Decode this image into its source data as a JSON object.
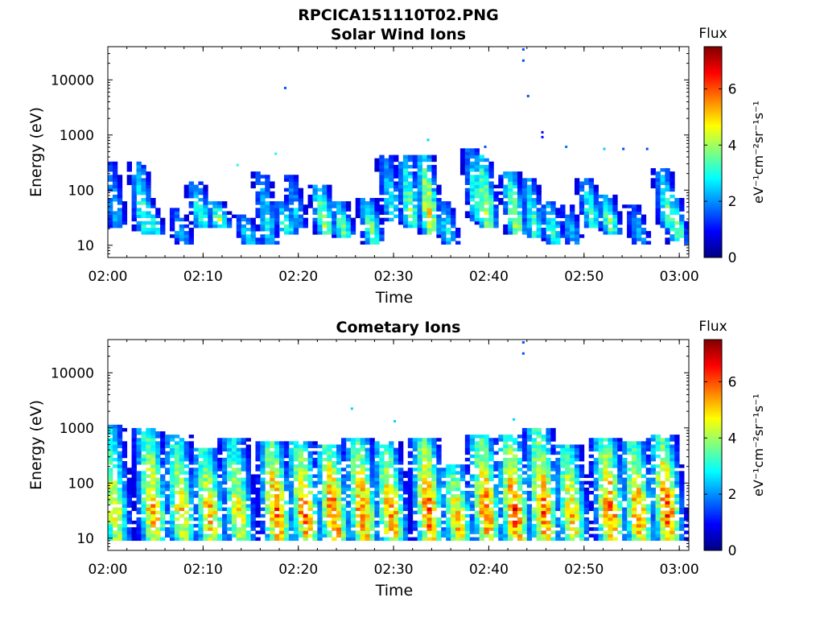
{
  "figure_title": "RPCICA151110T02.PNG",
  "chart_data": [
    {
      "type": "heatmap",
      "title": "Solar Wind Ions",
      "xlabel": "Time",
      "ylabel": "Energy (eV)",
      "yscale": "log",
      "xlim": [
        "02:00",
        "03:01"
      ],
      "ylim": [
        6,
        40000
      ],
      "xticks": [
        "02:00",
        "02:10",
        "02:20",
        "02:30",
        "02:40",
        "02:50",
        "03:00"
      ],
      "yticks": [
        "10",
        "100",
        "1000",
        "10000"
      ],
      "colorbar": {
        "label_top": "Flux",
        "unit": "eV⁻¹cm⁻²sr⁻¹s⁻¹",
        "range": [
          0,
          7.5
        ],
        "ticks": [
          "0",
          "2",
          "4",
          "6"
        ],
        "colormap": "jet"
      },
      "grid": false,
      "events": [
        {
          "t": "02:01",
          "emin": 20,
          "emax": 300,
          "fmax": 2.5
        },
        {
          "t": "02:04",
          "emin": 15,
          "emax": 300,
          "fmax": 3.5
        },
        {
          "t": "02:05",
          "emin": 15,
          "emax": 50,
          "fmax": 3.5
        },
        {
          "t": "02:08",
          "emin": 10,
          "emax": 45,
          "fmax": 2.5
        },
        {
          "t": "02:10",
          "emin": 20,
          "emax": 130,
          "fmax": 3.5
        },
        {
          "t": "02:12",
          "emin": 20,
          "emax": 60,
          "fmax": 4
        },
        {
          "t": "02:15",
          "emin": 10,
          "emax": 35,
          "fmax": 3
        },
        {
          "t": "02:17",
          "emin": 10,
          "emax": 200,
          "fmax": 3
        },
        {
          "t": "02:19",
          "emin": 15,
          "emax": 60,
          "fmax": 3.5
        },
        {
          "t": "02:20",
          "emin": 20,
          "emax": 180,
          "fmax": 2.5
        },
        {
          "t": "02:23",
          "emin": 15,
          "emax": 120,
          "fmax": 4.5
        },
        {
          "t": "02:25",
          "emin": 12,
          "emax": 60,
          "fmax": 4
        },
        {
          "t": "02:28",
          "emin": 10,
          "emax": 70,
          "fmax": 4
        },
        {
          "t": "02:30",
          "emin": 25,
          "emax": 400,
          "fmax": 3
        },
        {
          "t": "02:32",
          "emin": 20,
          "emax": 400,
          "fmax": 4
        },
        {
          "t": "02:34",
          "emin": 15,
          "emax": 400,
          "fmax": 5
        },
        {
          "t": "02:36",
          "emin": 10,
          "emax": 60,
          "fmax": 3
        },
        {
          "t": "02:39",
          "emin": 25,
          "emax": 500,
          "fmax": 3.5
        },
        {
          "t": "02:40",
          "emin": 20,
          "emax": 400,
          "fmax": 4.5
        },
        {
          "t": "02:43",
          "emin": 15,
          "emax": 200,
          "fmax": 4.5
        },
        {
          "t": "02:45",
          "emin": 12,
          "emax": 150,
          "fmax": 3.5
        },
        {
          "t": "02:47",
          "emin": 10,
          "emax": 60,
          "fmax": 3.5
        },
        {
          "t": "02:49",
          "emin": 10,
          "emax": 50,
          "fmax": 2.5
        },
        {
          "t": "02:51",
          "emin": 20,
          "emax": 150,
          "fmax": 3.5
        },
        {
          "t": "02:53",
          "emin": 15,
          "emax": 80,
          "fmax": 4
        },
        {
          "t": "02:56",
          "emin": 10,
          "emax": 50,
          "fmax": 2.5
        },
        {
          "t": "02:59",
          "emin": 20,
          "emax": 250,
          "fmax": 3.5
        },
        {
          "t": "03:00",
          "emin": 10,
          "emax": 80,
          "fmax": 4
        }
      ],
      "scatter": [
        {
          "t": "02:18.5",
          "e": 7000,
          "f": 1.5
        },
        {
          "t": "02:43.5",
          "e": 35000,
          "f": 1.5
        },
        {
          "t": "02:43.5",
          "e": 22000,
          "f": 1.5
        },
        {
          "t": "02:44",
          "e": 5000,
          "f": 1.5
        },
        {
          "t": "02:45.5",
          "e": 1100,
          "f": 1
        },
        {
          "t": "02:45.5",
          "e": 900,
          "f": 1
        },
        {
          "t": "02:48",
          "e": 600,
          "f": 1.8
        },
        {
          "t": "02:52",
          "e": 550,
          "f": 2.5
        },
        {
          "t": "02:54",
          "e": 550,
          "f": 1.5
        },
        {
          "t": "02:56.5",
          "e": 550,
          "f": 1.5
        },
        {
          "t": "02:39.5",
          "e": 600,
          "f": 1.5
        },
        {
          "t": "02:33.5",
          "e": 800,
          "f": 2.5
        },
        {
          "t": "02:17.5",
          "e": 450,
          "f": 3
        },
        {
          "t": "02:13.5",
          "e": 280,
          "f": 3
        }
      ]
    },
    {
      "type": "heatmap",
      "title": "Cometary Ions",
      "xlabel": "Time",
      "ylabel": "Energy (eV)",
      "yscale": "log",
      "xlim": [
        "02:00",
        "03:01"
      ],
      "ylim": [
        6,
        40000
      ],
      "xticks": [
        "02:00",
        "02:10",
        "02:20",
        "02:30",
        "02:40",
        "02:50",
        "03:00"
      ],
      "yticks": [
        "10",
        "100",
        "1000",
        "10000"
      ],
      "colorbar": {
        "label_top": "Flux",
        "unit": "eV⁻¹cm⁻²sr⁻¹s⁻¹",
        "range": [
          0,
          7.5
        ],
        "ticks": [
          "0",
          "2",
          "4",
          "6"
        ],
        "colormap": "jet"
      },
      "grid": false,
      "events": [
        {
          "t": "02:01",
          "emin": 8,
          "emax": 1000,
          "fmax": 4.8
        },
        {
          "t": "02:05",
          "emin": 8,
          "emax": 900,
          "fmax": 5.5
        },
        {
          "t": "02:08",
          "emin": 8,
          "emax": 700,
          "fmax": 5
        },
        {
          "t": "02:11",
          "emin": 8,
          "emax": 400,
          "fmax": 5.5
        },
        {
          "t": "02:14",
          "emin": 8,
          "emax": 600,
          "fmax": 5
        },
        {
          "t": "02:18",
          "emin": 8,
          "emax": 500,
          "fmax": 6.2
        },
        {
          "t": "02:21",
          "emin": 8,
          "emax": 500,
          "fmax": 6
        },
        {
          "t": "02:24",
          "emin": 8,
          "emax": 450,
          "fmax": 6.2
        },
        {
          "t": "02:27",
          "emin": 8,
          "emax": 600,
          "fmax": 6
        },
        {
          "t": "02:30",
          "emin": 8,
          "emax": 500,
          "fmax": 5.8
        },
        {
          "t": "02:34",
          "emin": 8,
          "emax": 600,
          "fmax": 6.2
        },
        {
          "t": "02:37",
          "emin": 8,
          "emax": 200,
          "fmax": 5.5
        },
        {
          "t": "02:40",
          "emin": 8,
          "emax": 700,
          "fmax": 6
        },
        {
          "t": "02:43",
          "emin": 8,
          "emax": 700,
          "fmax": 6.2
        },
        {
          "t": "02:46",
          "emin": 8,
          "emax": 900,
          "fmax": 6
        },
        {
          "t": "02:49",
          "emin": 8,
          "emax": 450,
          "fmax": 5.5
        },
        {
          "t": "02:53",
          "emin": 8,
          "emax": 600,
          "fmax": 6.2
        },
        {
          "t": "02:56",
          "emin": 8,
          "emax": 500,
          "fmax": 5.8
        },
        {
          "t": "02:59",
          "emin": 8,
          "emax": 700,
          "fmax": 6.2
        }
      ],
      "scatter": [
        {
          "t": "02:43.5",
          "e": 35000,
          "f": 1.5
        },
        {
          "t": "02:43.5",
          "e": 22000,
          "f": 1.5
        },
        {
          "t": "02:25.5",
          "e": 2200,
          "f": 2.5
        },
        {
          "t": "02:30",
          "e": 1300,
          "f": 2.5
        },
        {
          "t": "02:42.5",
          "e": 1400,
          "f": 2.5
        }
      ]
    }
  ]
}
